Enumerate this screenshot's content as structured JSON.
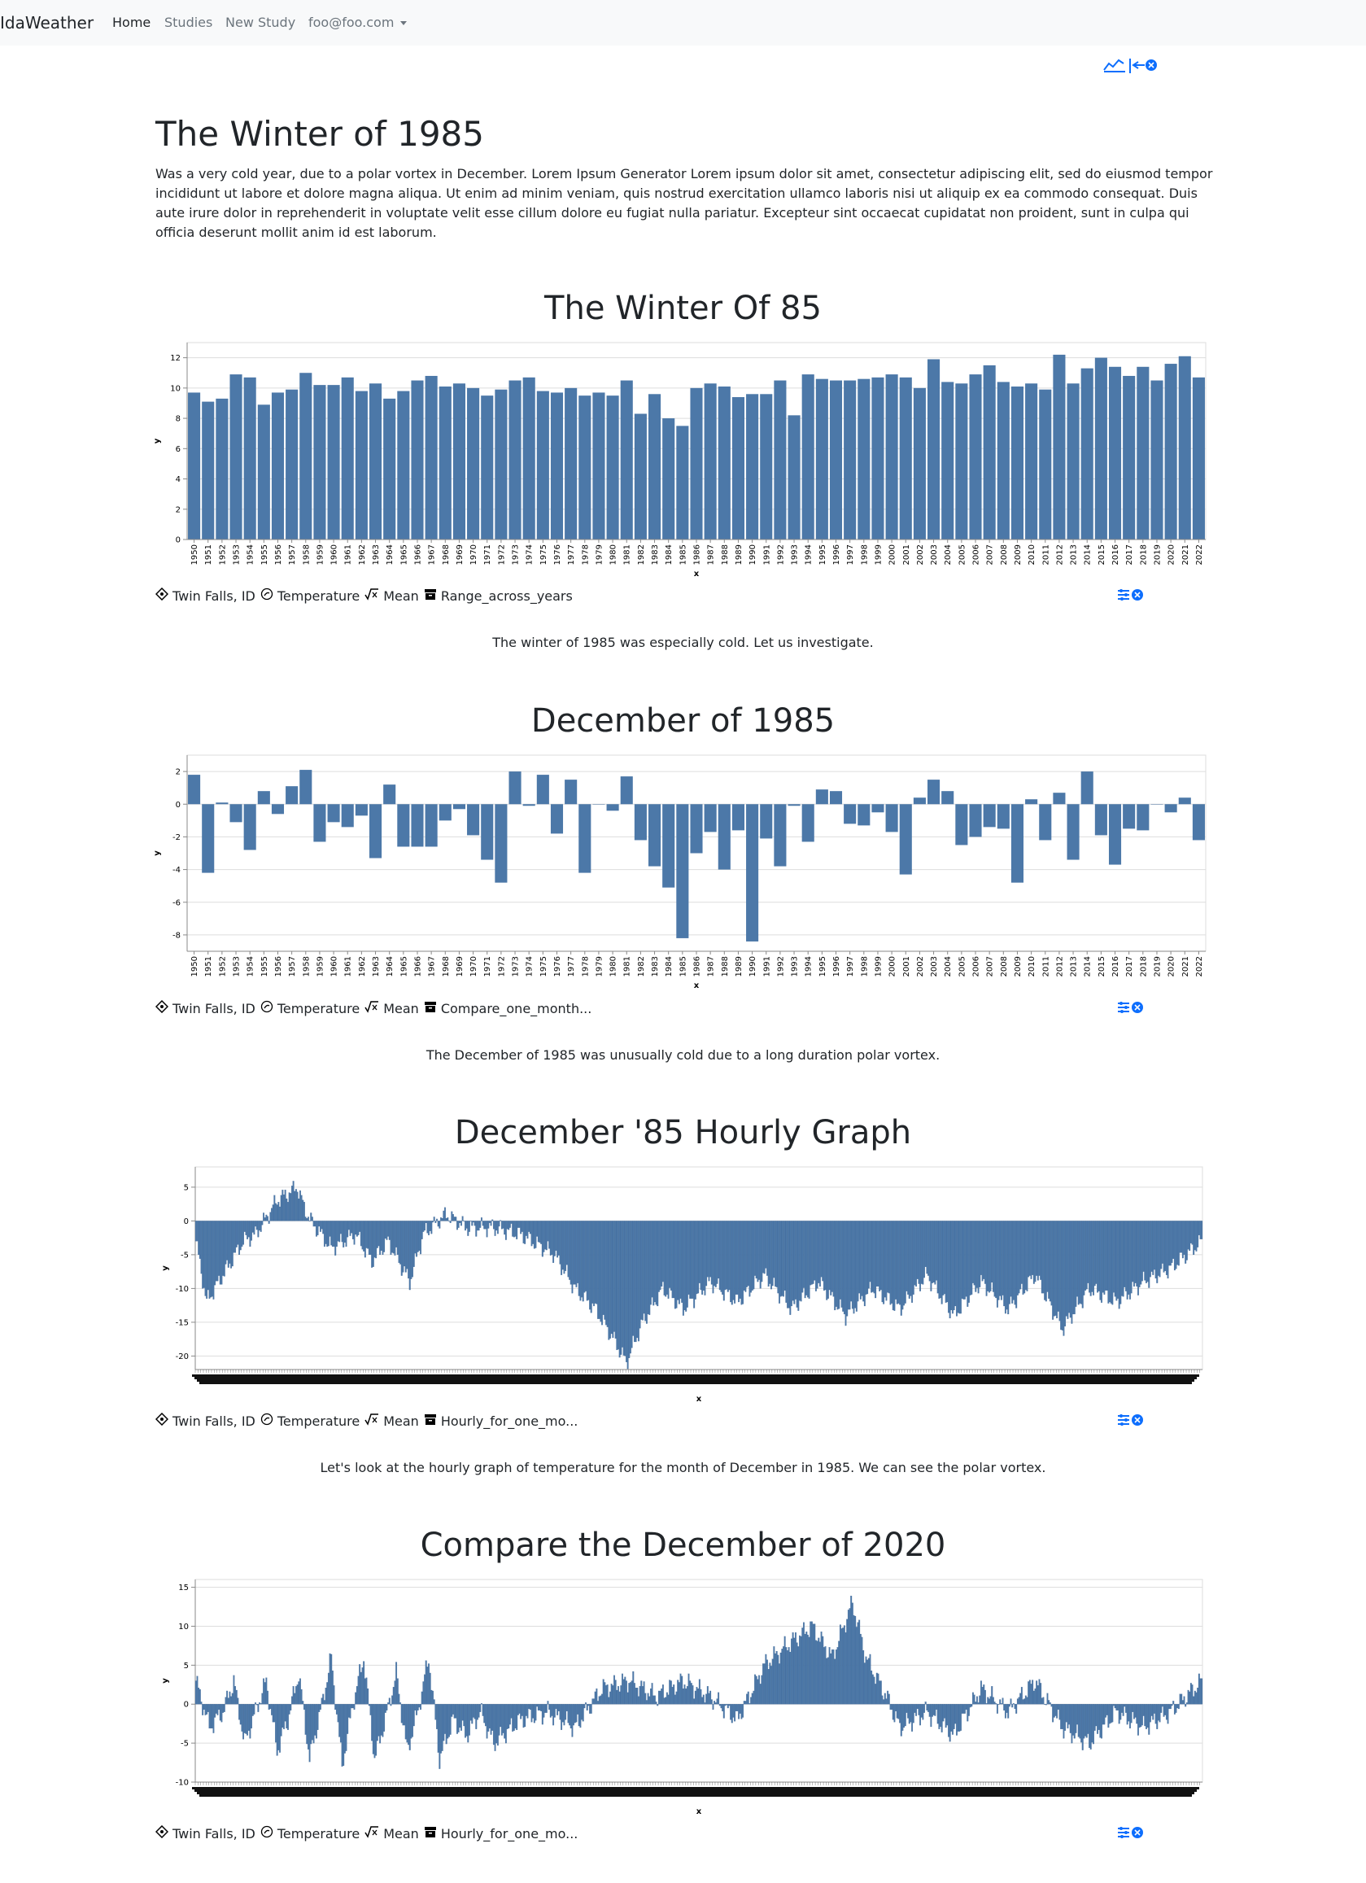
{
  "app": {
    "brand": "IdaWeather"
  },
  "nav": {
    "items": [
      {
        "label": "Home",
        "active": true
      },
      {
        "label": "Studies",
        "active": false
      },
      {
        "label": "New Study",
        "active": false
      }
    ],
    "user": "foo@foo.com"
  },
  "page": {
    "title": "The Winter of 1985",
    "description": "Was a very cold year, due to a polar vortex in December. Lorem Ipsum Generator Lorem ipsum dolor sit amet, consectetur adipiscing elit, sed do eiusmod tempor incididunt ut labore et dolore magna aliqua. Ut enim ad minim veniam, quis nostrud exercitation ullamco laboris nisi ut aliquip ex ea commodo consequat. Duis aute irure dolor in reprehenderit in voluptate velit esse cillum dolore eu fugiat nulla pariatur. Excepteur sint occaecat cupidatat non proident, sunt in culpa qui officia deserunt mollit anim id est laborum."
  },
  "colors": {
    "bar": "#4c78a8",
    "accent": "#0d6efd",
    "navbar_bg": "#f8f9fa"
  },
  "sections": [
    {
      "title": "The Winter Of 85",
      "meta": {
        "location": "Twin Falls, ID",
        "variable": "Temperature",
        "stat": "Mean",
        "study_type": "Range_across_years"
      },
      "caption": "The winter of 1985 was especially cold. Let us investigate."
    },
    {
      "title": "December of 1985",
      "meta": {
        "location": "Twin Falls, ID",
        "variable": "Temperature",
        "stat": "Mean",
        "study_type": "Compare_one_month..."
      },
      "caption": "The December of 1985 was unusually cold due to a long duration polar vortex."
    },
    {
      "title": "December '85 Hourly Graph",
      "meta": {
        "location": "Twin Falls, ID",
        "variable": "Temperature",
        "stat": "Mean",
        "study_type": "Hourly_for_one_mo..."
      },
      "caption": "Let's look at the hourly graph of temperature for the month of December in 1985. We can see the polar vortex."
    },
    {
      "title": "Compare the December of 2020",
      "meta": {
        "location": "Twin Falls, ID",
        "variable": "Temperature",
        "stat": "Mean",
        "study_type": "Hourly_for_one_mo..."
      },
      "caption": ""
    }
  ],
  "icons": {
    "location": "crosshair-icon",
    "variable": "thermometer-icon",
    "stat": "sqrt-icon",
    "study_type": "archive-icon",
    "tools": "sliders-close-icon",
    "top_tools": "chart-collapse-icon"
  },
  "chart_data": [
    {
      "type": "bar",
      "xlabel": "x",
      "ylabel": "y",
      "ylim": [
        0,
        13
      ],
      "yticks": [
        0,
        2,
        4,
        6,
        8,
        10,
        12
      ],
      "grid": true,
      "categories": [
        "1950",
        "1951",
        "1952",
        "1953",
        "1954",
        "1955",
        "1956",
        "1957",
        "1958",
        "1959",
        "1960",
        "1961",
        "1962",
        "1963",
        "1964",
        "1965",
        "1966",
        "1967",
        "1968",
        "1969",
        "1970",
        "1971",
        "1972",
        "1973",
        "1974",
        "1975",
        "1976",
        "1977",
        "1978",
        "1979",
        "1980",
        "1981",
        "1982",
        "1983",
        "1984",
        "1985",
        "1986",
        "1987",
        "1988",
        "1989",
        "1990",
        "1991",
        "1992",
        "1993",
        "1994",
        "1995",
        "1996",
        "1997",
        "1998",
        "1999",
        "2000",
        "2001",
        "2002",
        "2003",
        "2004",
        "2005",
        "2006",
        "2007",
        "2008",
        "2009",
        "2010",
        "2011",
        "2012",
        "2013",
        "2014",
        "2015",
        "2016",
        "2017",
        "2018",
        "2019",
        "2020",
        "2021",
        "2022"
      ],
      "values": [
        9.7,
        9.1,
        9.3,
        10.9,
        10.7,
        8.9,
        9.7,
        9.9,
        11.0,
        10.2,
        10.2,
        10.7,
        9.8,
        10.3,
        9.3,
        9.8,
        10.5,
        10.8,
        10.1,
        10.3,
        10.0,
        9.5,
        9.9,
        10.5,
        10.7,
        9.8,
        9.7,
        10.0,
        9.5,
        9.7,
        9.5,
        10.5,
        8.3,
        9.6,
        8.0,
        7.5,
        10.0,
        10.3,
        10.1,
        9.4,
        9.6,
        9.6,
        10.5,
        8.2,
        10.9,
        10.6,
        10.5,
        10.5,
        10.6,
        10.7,
        10.9,
        10.7,
        10.0,
        11.9,
        10.4,
        10.3,
        10.9,
        11.5,
        10.4,
        10.1,
        10.3,
        9.9,
        12.2,
        10.3,
        11.3,
        12.0,
        11.4,
        10.8,
        11.4,
        10.5,
        11.6,
        12.1,
        10.7
      ]
    },
    {
      "type": "bar",
      "xlabel": "x",
      "ylabel": "y",
      "ylim": [
        -9,
        3
      ],
      "yticks": [
        -8,
        -6,
        -4,
        -2,
        0,
        2
      ],
      "grid": true,
      "categories": [
        "1950",
        "1951",
        "1952",
        "1953",
        "1954",
        "1955",
        "1956",
        "1957",
        "1958",
        "1959",
        "1960",
        "1961",
        "1962",
        "1963",
        "1964",
        "1965",
        "1966",
        "1967",
        "1968",
        "1969",
        "1970",
        "1971",
        "1972",
        "1973",
        "1974",
        "1975",
        "1976",
        "1977",
        "1978",
        "1979",
        "1980",
        "1981",
        "1982",
        "1983",
        "1984",
        "1985",
        "1986",
        "1987",
        "1988",
        "1989",
        "1990",
        "1991",
        "1992",
        "1993",
        "1994",
        "1995",
        "1996",
        "1997",
        "1998",
        "1999",
        "2000",
        "2001",
        "2002",
        "2003",
        "2004",
        "2005",
        "2006",
        "2007",
        "2008",
        "2009",
        "2010",
        "2011",
        "2012",
        "2013",
        "2014",
        "2015",
        "2016",
        "2017",
        "2018",
        "2019",
        "2020",
        "2021",
        "2022"
      ],
      "values": [
        1.8,
        -4.2,
        0.1,
        -1.1,
        -2.8,
        0.8,
        -0.6,
        1.1,
        2.1,
        -2.3,
        -1.1,
        -1.4,
        -0.7,
        -3.3,
        1.2,
        -2.6,
        -2.6,
        -2.6,
        -1.0,
        -0.3,
        -1.9,
        -3.4,
        -4.8,
        2.0,
        -0.1,
        1.8,
        -1.8,
        1.5,
        -4.2,
        0.0,
        -0.4,
        1.7,
        -2.2,
        -3.8,
        -5.1,
        -8.2,
        -3.0,
        -1.7,
        -4.0,
        -1.6,
        -8.4,
        -2.1,
        -3.8,
        -0.1,
        -2.3,
        0.9,
        0.8,
        -1.2,
        -1.3,
        -0.5,
        -1.7,
        -4.3,
        0.4,
        1.5,
        0.8,
        -2.5,
        -2.0,
        -1.4,
        -1.5,
        -4.8,
        0.3,
        -2.2,
        0.7,
        -3.4,
        2.0,
        -1.9,
        -3.7,
        -1.5,
        -1.6,
        0.0,
        -0.5,
        0.4,
        -2.2
      ]
    },
    {
      "type": "bar",
      "xlabel": "x",
      "ylabel": "y",
      "ylim": [
        -22,
        8
      ],
      "yticks": [
        -20,
        -15,
        -10,
        -5,
        0,
        5
      ],
      "grid": true,
      "note": "744 hourly values for December 1985",
      "keypoints": [
        [
          0,
          -3
        ],
        [
          8,
          -12
        ],
        [
          20,
          -8
        ],
        [
          35,
          -3
        ],
        [
          44,
          -2
        ],
        [
          60,
          3
        ],
        [
          75,
          5
        ],
        [
          80,
          2
        ],
        [
          85,
          0
        ],
        [
          100,
          -4
        ],
        [
          118,
          -2
        ],
        [
          130,
          -6
        ],
        [
          142,
          -3
        ],
        [
          158,
          -9
        ],
        [
          168,
          -2
        ],
        [
          185,
          1
        ],
        [
          200,
          -1
        ],
        [
          220,
          -1
        ],
        [
          240,
          -2
        ],
        [
          265,
          -5
        ],
        [
          280,
          -10
        ],
        [
          295,
          -13
        ],
        [
          310,
          -18
        ],
        [
          318,
          -21
        ],
        [
          330,
          -15
        ],
        [
          345,
          -10
        ],
        [
          360,
          -13
        ],
        [
          380,
          -9
        ],
        [
          400,
          -12
        ],
        [
          420,
          -8
        ],
        [
          440,
          -13
        ],
        [
          460,
          -9
        ],
        [
          480,
          -14
        ],
        [
          500,
          -10
        ],
        [
          520,
          -13
        ],
        [
          540,
          -8
        ],
        [
          560,
          -14
        ],
        [
          580,
          -9
        ],
        [
          600,
          -13
        ],
        [
          620,
          -8
        ],
        [
          640,
          -16
        ],
        [
          660,
          -10
        ],
        [
          680,
          -12
        ],
        [
          700,
          -9
        ],
        [
          720,
          -7
        ],
        [
          743,
          -3
        ]
      ]
    },
    {
      "type": "bar",
      "xlabel": "x",
      "ylabel": "y",
      "ylim": [
        -10,
        16
      ],
      "yticks": [
        -10,
        -5,
        0,
        5,
        10,
        15
      ],
      "grid": true,
      "note": "744 hourly values for December 2020",
      "keypoints": [
        [
          0,
          3
        ],
        [
          10,
          -3
        ],
        [
          20,
          -1
        ],
        [
          28,
          3
        ],
        [
          36,
          -5
        ],
        [
          44,
          -1
        ],
        [
          52,
          3
        ],
        [
          60,
          -6
        ],
        [
          68,
          -2
        ],
        [
          76,
          4
        ],
        [
          84,
          -7
        ],
        [
          92,
          -1
        ],
        [
          100,
          6
        ],
        [
          108,
          -8
        ],
        [
          116,
          0
        ],
        [
          124,
          6
        ],
        [
          132,
          -7
        ],
        [
          140,
          -2
        ],
        [
          148,
          4
        ],
        [
          156,
          -6
        ],
        [
          164,
          -1
        ],
        [
          172,
          6
        ],
        [
          180,
          -7
        ],
        [
          190,
          -2
        ],
        [
          200,
          -4
        ],
        [
          210,
          -1
        ],
        [
          220,
          -5
        ],
        [
          240,
          -2
        ],
        [
          260,
          -1
        ],
        [
          280,
          -3
        ],
        [
          300,
          2
        ],
        [
          320,
          3
        ],
        [
          340,
          1
        ],
        [
          360,
          3
        ],
        [
          380,
          1
        ],
        [
          400,
          -2
        ],
        [
          420,
          5
        ],
        [
          440,
          8
        ],
        [
          455,
          10
        ],
        [
          470,
          6
        ],
        [
          485,
          13
        ],
        [
          495,
          6
        ],
        [
          510,
          1
        ],
        [
          520,
          -3
        ],
        [
          540,
          -1
        ],
        [
          560,
          -4
        ],
        [
          580,
          2
        ],
        [
          600,
          -1
        ],
        [
          620,
          3
        ],
        [
          640,
          -3
        ],
        [
          660,
          -5
        ],
        [
          680,
          -1
        ],
        [
          700,
          -3
        ],
        [
          720,
          -1
        ],
        [
          743,
          3
        ]
      ]
    }
  ]
}
